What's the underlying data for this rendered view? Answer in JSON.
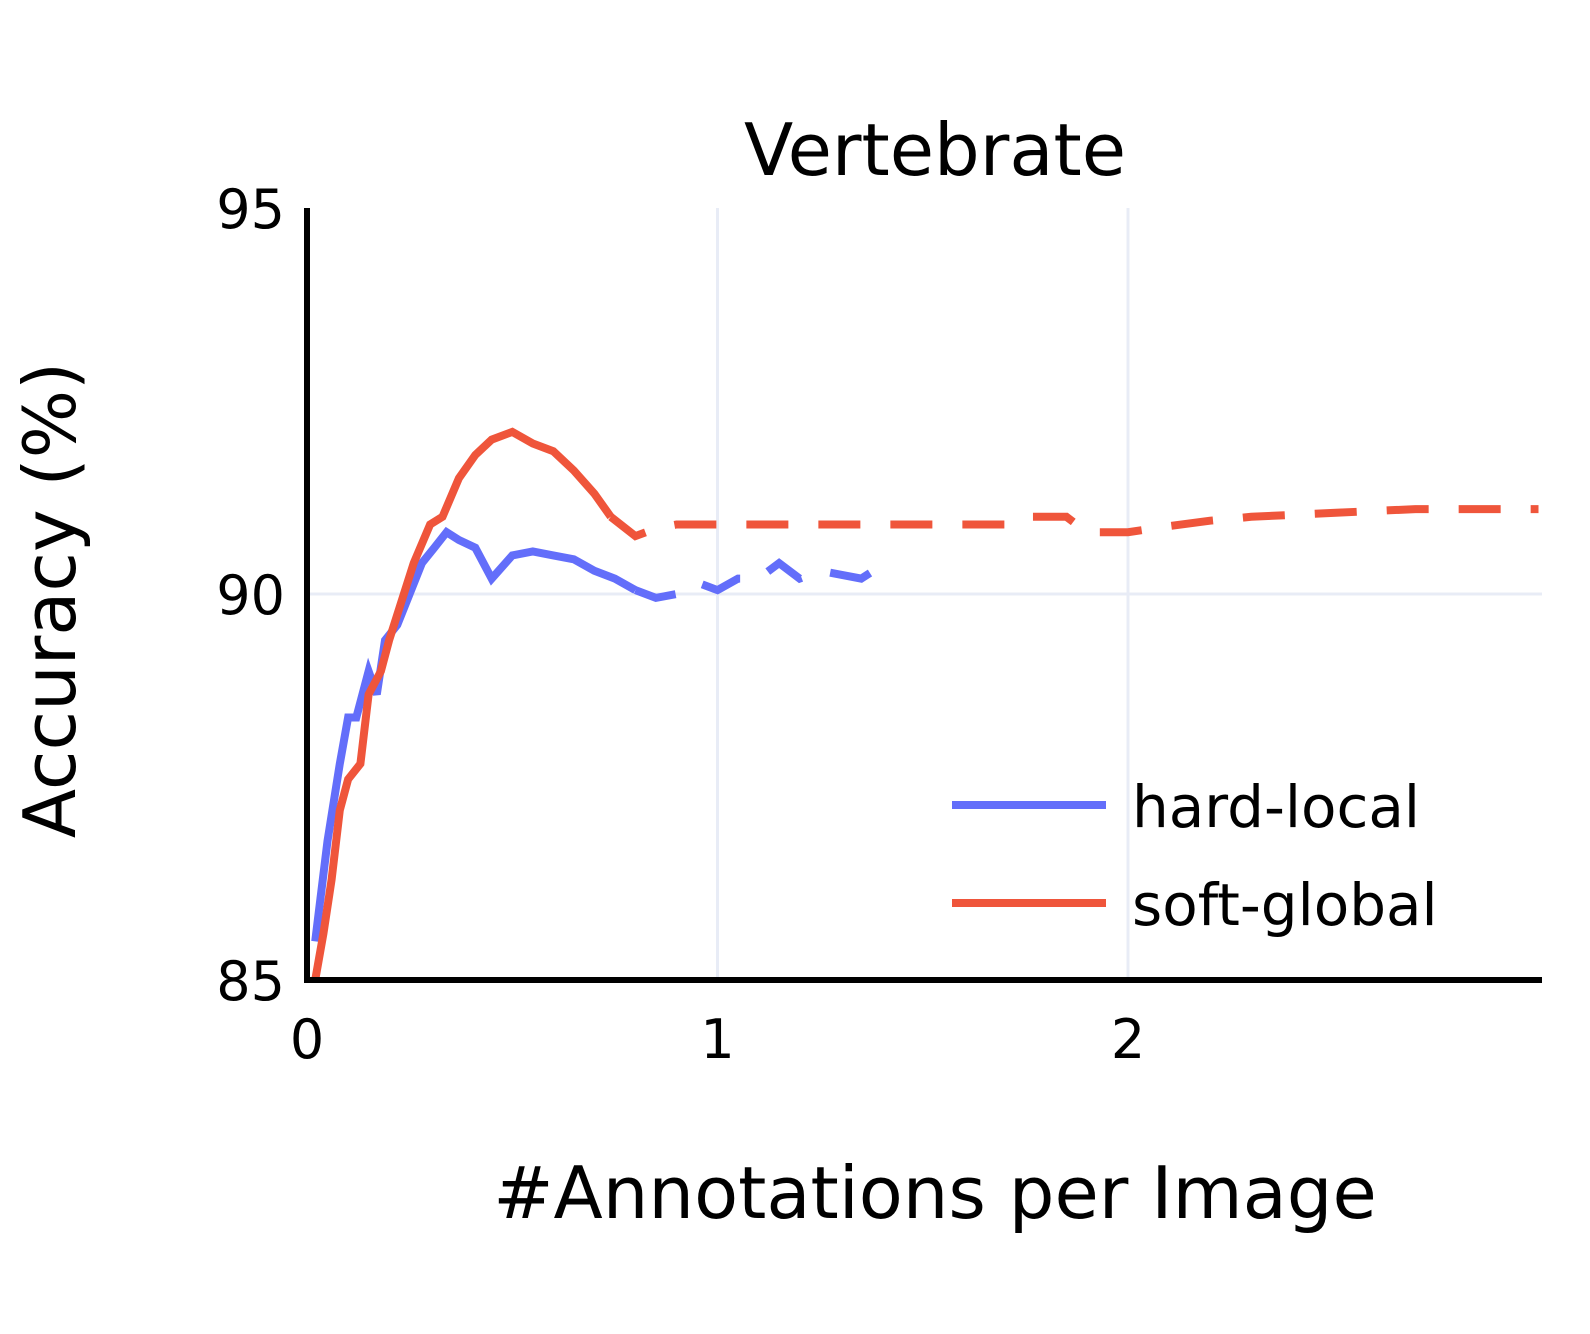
{
  "chart_data": {
    "type": "line",
    "title": "Vertebrate",
    "xlabel": "#Annotations per Image",
    "ylabel": "Accuracy (%)",
    "xlim": [
      0,
      3
    ],
    "ylim": [
      85,
      95
    ],
    "xticks": [
      0,
      1,
      2
    ],
    "yticks": [
      85,
      90,
      95
    ],
    "grid": true,
    "legend_position": "bottom-right",
    "series": [
      {
        "name": "hard-local",
        "color": "#636efa",
        "solid": [
          [
            0.02,
            85.5
          ],
          [
            0.05,
            86.8
          ],
          [
            0.08,
            87.8
          ],
          [
            0.1,
            88.4
          ],
          [
            0.12,
            88.4
          ],
          [
            0.15,
            89.0
          ],
          [
            0.17,
            88.7
          ],
          [
            0.19,
            89.4
          ],
          [
            0.22,
            89.6
          ],
          [
            0.25,
            90.0
          ],
          [
            0.28,
            90.4
          ],
          [
            0.31,
            90.6
          ],
          [
            0.34,
            90.8
          ],
          [
            0.37,
            90.7
          ],
          [
            0.41,
            90.6
          ],
          [
            0.45,
            90.2
          ],
          [
            0.5,
            90.5
          ],
          [
            0.55,
            90.55
          ],
          [
            0.6,
            90.5
          ],
          [
            0.65,
            90.45
          ],
          [
            0.7,
            90.3
          ],
          [
            0.75,
            90.2
          ],
          [
            0.8,
            90.05
          ]
        ],
        "dashed": [
          [
            0.8,
            90.05
          ],
          [
            0.85,
            89.95
          ],
          [
            0.9,
            90.0
          ],
          [
            0.95,
            90.15
          ],
          [
            1.0,
            90.05
          ],
          [
            1.05,
            90.2
          ],
          [
            1.1,
            90.2
          ],
          [
            1.15,
            90.4
          ],
          [
            1.2,
            90.2
          ],
          [
            1.25,
            90.3
          ],
          [
            1.3,
            90.25
          ],
          [
            1.35,
            90.2
          ],
          [
            1.38,
            90.3
          ]
        ]
      },
      {
        "name": "soft-global",
        "color": "#ef553b",
        "solid": [
          [
            0.02,
            85.0
          ],
          [
            0.04,
            85.6
          ],
          [
            0.06,
            86.3
          ],
          [
            0.08,
            87.2
          ],
          [
            0.1,
            87.6
          ],
          [
            0.13,
            87.8
          ],
          [
            0.15,
            88.7
          ],
          [
            0.18,
            89.0
          ],
          [
            0.2,
            89.4
          ],
          [
            0.23,
            89.9
          ],
          [
            0.26,
            90.4
          ],
          [
            0.3,
            90.9
          ],
          [
            0.33,
            91.0
          ],
          [
            0.37,
            91.5
          ],
          [
            0.41,
            91.8
          ],
          [
            0.45,
            92.0
          ],
          [
            0.5,
            92.1
          ],
          [
            0.55,
            91.95
          ],
          [
            0.6,
            91.85
          ],
          [
            0.65,
            91.6
          ],
          [
            0.7,
            91.3
          ],
          [
            0.74,
            91.0
          ]
        ],
        "dashed": [
          [
            0.74,
            91.0
          ],
          [
            0.8,
            90.75
          ],
          [
            0.85,
            90.85
          ],
          [
            0.9,
            90.9
          ],
          [
            1.0,
            90.9
          ],
          [
            1.1,
            90.9
          ],
          [
            1.3,
            90.9
          ],
          [
            1.5,
            90.9
          ],
          [
            1.7,
            90.9
          ],
          [
            1.75,
            91.0
          ],
          [
            1.85,
            91.0
          ],
          [
            1.9,
            90.8
          ],
          [
            2.0,
            90.8
          ],
          [
            2.1,
            90.88
          ],
          [
            2.2,
            90.95
          ],
          [
            2.3,
            91.0
          ],
          [
            2.5,
            91.05
          ],
          [
            2.7,
            91.1
          ],
          [
            3.0,
            91.1
          ]
        ]
      }
    ]
  }
}
